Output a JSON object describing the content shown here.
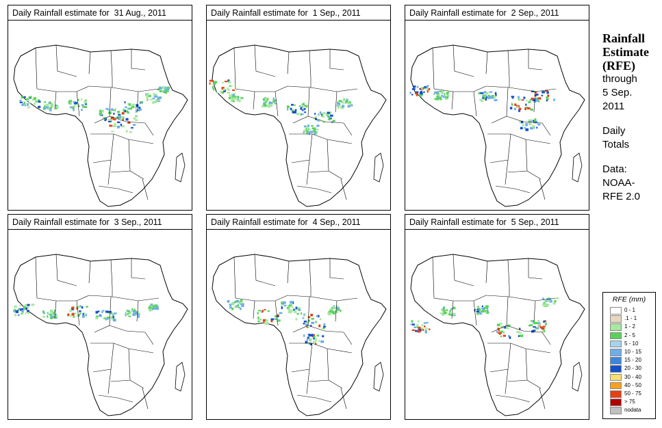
{
  "panels": [
    {
      "title": "Daily Rainfall estimate for  31 Aug., 2011"
    },
    {
      "title": "Daily Rainfall estimate for  1 Sep., 2011"
    },
    {
      "title": "Daily Rainfall estimate for  2 Sep., 2011"
    },
    {
      "title": "Daily Rainfall estimate for  3 Sep., 2011"
    },
    {
      "title": "Daily Rainfall estimate for  4 Sep., 2011"
    },
    {
      "title": "Daily Rainfall estimate for  5 Sep., 2011"
    }
  ],
  "side": {
    "heading": [
      "Rainfall",
      "Estimate",
      "(RFE)"
    ],
    "through": [
      "through",
      "5 Sep.",
      "2011"
    ],
    "totals": [
      "Daily",
      "Totals"
    ],
    "source": [
      "Data:",
      "NOAA-",
      "RFE 2.0"
    ]
  },
  "legend": {
    "title": "RFE (mm)",
    "items": [
      {
        "label": "0 - 1",
        "color": "#ffffff"
      },
      {
        "label": ".1 - 1",
        "color": "#e8d8c0"
      },
      {
        "label": "1 - 2",
        "color": "#a8e8a0"
      },
      {
        "label": "2 - 5",
        "color": "#5ad25a"
      },
      {
        "label": "5 - 10",
        "color": "#a6d4ee"
      },
      {
        "label": "10 - 15",
        "color": "#6eaee8"
      },
      {
        "label": "15 - 20",
        "color": "#3c86e0"
      },
      {
        "label": "20 - 30",
        "color": "#1650c8"
      },
      {
        "label": "30 - 40",
        "color": "#f8e070"
      },
      {
        "label": "40 - 50",
        "color": "#f8a020"
      },
      {
        "label": "50 - 75",
        "color": "#e84010"
      },
      {
        "label": "> 75",
        "color": "#b00000"
      },
      {
        "label": "nodata",
        "color": "#c0c0c0"
      }
    ]
  }
}
